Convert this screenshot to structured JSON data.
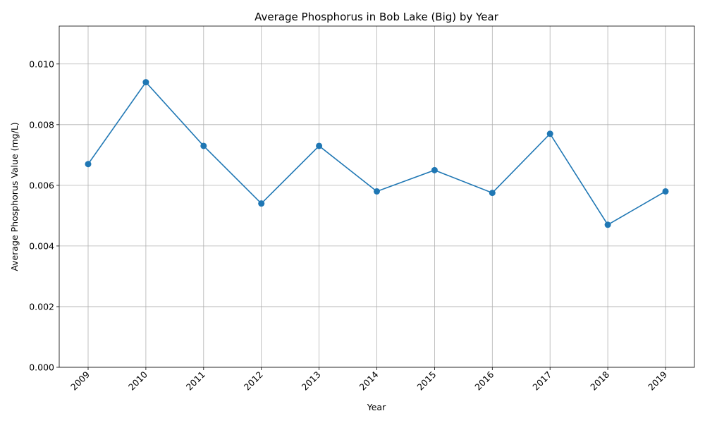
{
  "chart_data": {
    "type": "line",
    "title": "Average Phosphorus in Bob Lake (Big) by Year",
    "xlabel": "Year",
    "ylabel": "Average Phosphorus Value (mg/L)",
    "x": [
      "2009",
      "2010",
      "2011",
      "2012",
      "2013",
      "2014",
      "2015",
      "2016",
      "2017",
      "2018",
      "2019"
    ],
    "series": [
      {
        "values": [
          0.0067,
          0.0094,
          0.0073,
          0.0054,
          0.0073,
          0.0058,
          0.0065,
          0.00575,
          0.0077,
          0.0047,
          0.0058
        ],
        "color": "#1f77b4",
        "marker": "circle"
      }
    ],
    "ylim": [
      0,
      0.01125
    ],
    "yticks": [
      "0.000",
      "0.002",
      "0.004",
      "0.006",
      "0.008",
      "0.010"
    ],
    "ytick_values": [
      0,
      0.002,
      0.004,
      0.006,
      0.008,
      0.01
    ],
    "grid": true,
    "x_tick_rotation": "45 degrees"
  }
}
